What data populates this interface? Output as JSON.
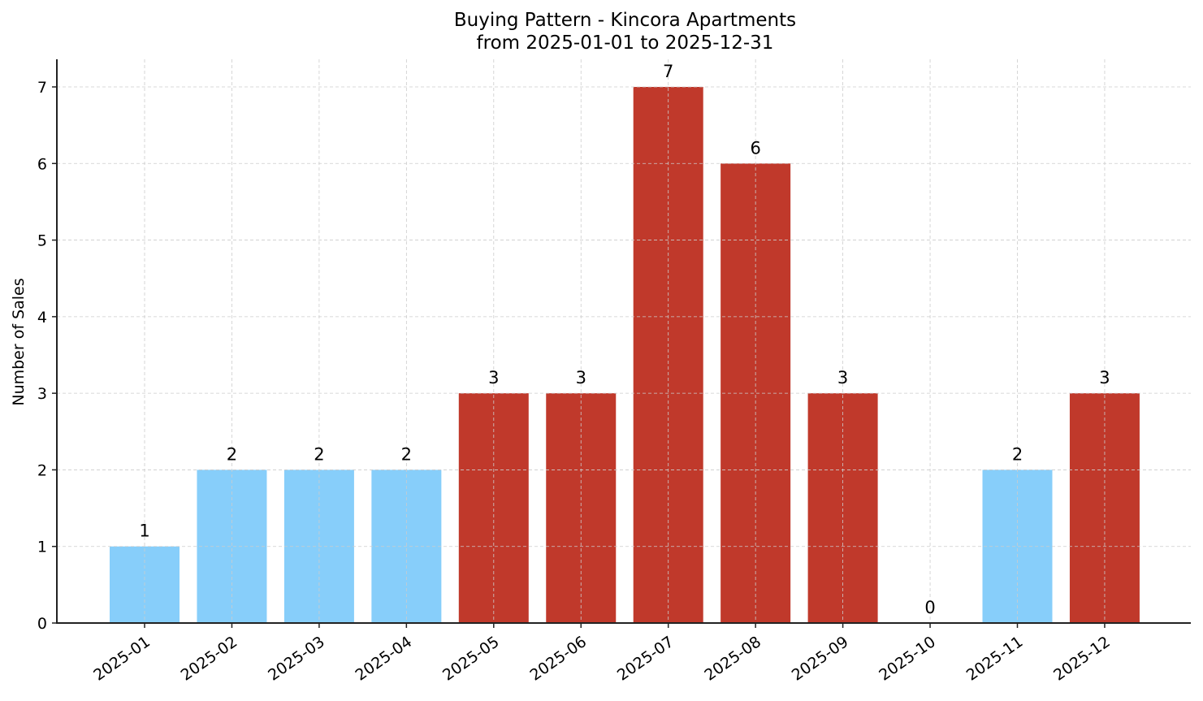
{
  "chart": {
    "title_line1": "Buying Pattern - Kincora Apartments",
    "title_line2": "from 2025-01-01 to 2025-12-31",
    "ylabel": "Number of Sales",
    "colors": {
      "low": "#87CEFA",
      "high": "#C0392B",
      "axis": "#222222",
      "grid": "#cccccc"
    }
  },
  "chart_data": {
    "type": "bar",
    "title": "Buying Pattern - Kincora Apartments\nfrom 2025-01-01 to 2025-12-31",
    "xlabel": "",
    "ylabel": "Number of Sales",
    "categories": [
      "2025-01",
      "2025-02",
      "2025-03",
      "2025-04",
      "2025-05",
      "2025-06",
      "2025-07",
      "2025-08",
      "2025-09",
      "2025-10",
      "2025-11",
      "2025-12"
    ],
    "values": [
      1,
      2,
      2,
      2,
      3,
      3,
      7,
      6,
      3,
      0,
      2,
      3
    ],
    "bar_colors": [
      "#87CEFA",
      "#87CEFA",
      "#87CEFA",
      "#87CEFA",
      "#C0392B",
      "#C0392B",
      "#C0392B",
      "#C0392B",
      "#C0392B",
      "#87CEFA",
      "#87CEFA",
      "#C0392B"
    ],
    "data_labels": [
      "1",
      "2",
      "2",
      "2",
      "3",
      "3",
      "7",
      "6",
      "3",
      "0",
      "2",
      "3"
    ],
    "yticks": [
      0,
      1,
      2,
      3,
      4,
      5,
      6,
      7
    ],
    "ylim": [
      0,
      7.35
    ],
    "grid": true,
    "legend": null
  }
}
